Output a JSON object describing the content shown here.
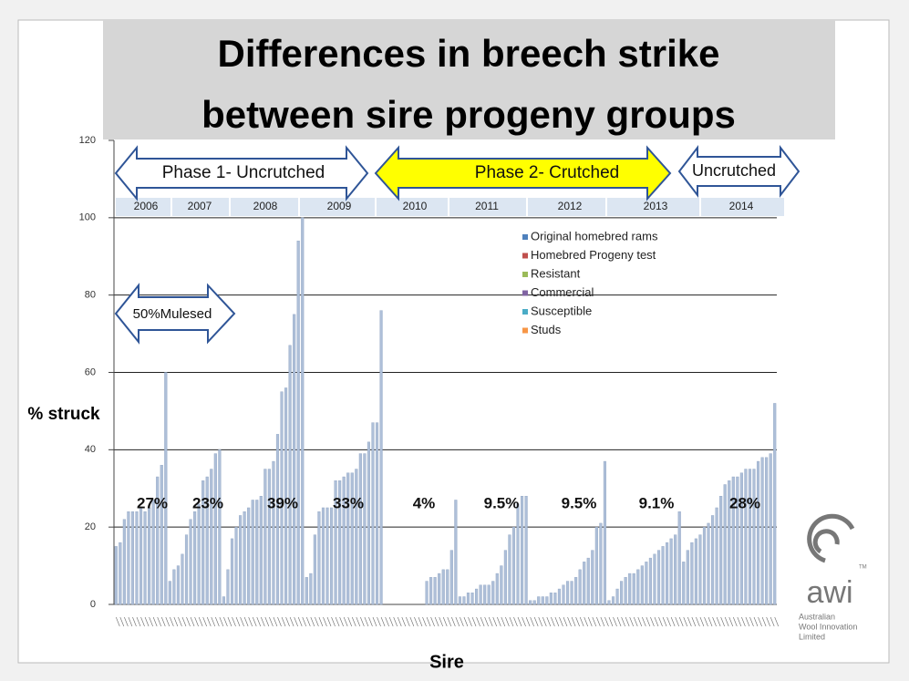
{
  "chart_data": {
    "type": "bar",
    "title": "Differences in breech strike",
    "subtitle": "between sire progeny groups",
    "y_label": "% struck",
    "x_label": "Sire",
    "ylim": [
      0,
      120
    ],
    "yticks": [
      0,
      20,
      40,
      60,
      80,
      100,
      120
    ],
    "grid": true,
    "color": "#aebfd8",
    "values": [
      15,
      16,
      22,
      24,
      24,
      24,
      25,
      24,
      25,
      27,
      33,
      36,
      60,
      6,
      9,
      10,
      13,
      18,
      22,
      24,
      26,
      32,
      33,
      35,
      39,
      40,
      2,
      9,
      17,
      20,
      23,
      24,
      25,
      27,
      27,
      28,
      35,
      35,
      37,
      44,
      55,
      56,
      67,
      75,
      94,
      100,
      7,
      8,
      18,
      24,
      25,
      25,
      25,
      32,
      32,
      33,
      34,
      34,
      35,
      39,
      39,
      42,
      47,
      47,
      76,
      0,
      0,
      0,
      0,
      0,
      0,
      0,
      0,
      0,
      0,
      6,
      7,
      7,
      8,
      9,
      9,
      14,
      27,
      2,
      2,
      3,
      3,
      4,
      5,
      5,
      5,
      6,
      8,
      10,
      14,
      18,
      20,
      26,
      28,
      28,
      1,
      1,
      2,
      2,
      2,
      3,
      3,
      4,
      5,
      6,
      6,
      7,
      9,
      11,
      12,
      14,
      20,
      21,
      37,
      1,
      2,
      4,
      6,
      7,
      8,
      8,
      9,
      10,
      11,
      12,
      13,
      14,
      15,
      16,
      17,
      18,
      24,
      11,
      14,
      16,
      17,
      18,
      20,
      21,
      23,
      25,
      28,
      31,
      32,
      33,
      33,
      34,
      35,
      35,
      35,
      37,
      38,
      38,
      39,
      52
    ],
    "series": [
      {
        "name": "Original homebred rams",
        "color": "#4f81bd"
      },
      {
        "name": "Homebred Progeny test",
        "color": "#c0504d"
      },
      {
        "name": "Resistant",
        "color": "#9bbb59"
      },
      {
        "name": "Commercial",
        "color": "#8064a2"
      },
      {
        "name": "Susceptible",
        "color": "#4bacc6"
      },
      {
        "name": "Studs",
        "color": "#f79646"
      }
    ],
    "years": [
      "2006",
      "2007",
      "2008",
      "2009",
      "2010",
      "2011",
      "2012",
      "2013",
      "2014"
    ],
    "year_labels": [
      "27%",
      "23%",
      "39%",
      "33%",
      "4%",
      "9.5%",
      "9.5%",
      "9.1%",
      "28%"
    ],
    "phases": [
      "Phase 1- Uncrutched",
      "Phase 2- Crutched",
      "Uncrutched"
    ],
    "mulesed_label": "50%Mulesed",
    "logo": {
      "mark": "awi",
      "tm": "TM",
      "lines": [
        "Australian",
        "Wool Innovation",
        "Limited"
      ]
    }
  }
}
